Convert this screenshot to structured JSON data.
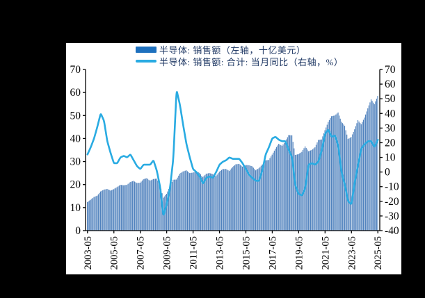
{
  "chart_data": {
    "type": "bar+line",
    "title": "",
    "legend": [
      {
        "label": "半导体: 销售额（左轴，十亿美元）",
        "type": "bar",
        "color": "#1d70be"
      },
      {
        "label": "半导体: 销售额: 合计: 当月同比（右轴，%）",
        "type": "line",
        "color": "#29abe2"
      }
    ],
    "left_axis": {
      "min": 0,
      "max": 70,
      "step": 10,
      "ticks": [
        0,
        10,
        20,
        30,
        40,
        50,
        60,
        70
      ]
    },
    "right_axis": {
      "min": -40,
      "max": 70,
      "step": 10,
      "ticks": [
        -40,
        -30,
        -20,
        -10,
        0,
        10,
        20,
        30,
        40,
        50,
        60,
        70
      ]
    },
    "x_tick_labels": [
      "2003-05",
      "2005-05",
      "2007-05",
      "2009-05",
      "2011-05",
      "2013-05",
      "2015-05",
      "2017-05",
      "2019-05",
      "2021-05",
      "2023-05",
      "2025-05"
    ],
    "x_label_rotation": -90,
    "grid": false,
    "highlight_x": "2023-05",
    "categories": [
      "2003-05",
      "2003-08",
      "2003-11",
      "2004-02",
      "2004-05",
      "2004-08",
      "2004-11",
      "2005-02",
      "2005-05",
      "2005-08",
      "2005-11",
      "2006-02",
      "2006-05",
      "2006-08",
      "2006-11",
      "2007-02",
      "2007-05",
      "2007-08",
      "2007-11",
      "2008-02",
      "2008-05",
      "2008-08",
      "2008-11",
      "2009-02",
      "2009-05",
      "2009-08",
      "2009-11",
      "2010-02",
      "2010-05",
      "2010-08",
      "2010-11",
      "2011-02",
      "2011-05",
      "2011-08",
      "2011-11",
      "2012-02",
      "2012-05",
      "2012-08",
      "2012-11",
      "2013-02",
      "2013-05",
      "2013-08",
      "2013-11",
      "2014-02",
      "2014-05",
      "2014-08",
      "2014-11",
      "2015-02",
      "2015-05",
      "2015-08",
      "2015-11",
      "2016-02",
      "2016-05",
      "2016-08",
      "2016-11",
      "2017-02",
      "2017-05",
      "2017-08",
      "2017-11",
      "2018-02",
      "2018-05",
      "2018-08",
      "2018-11",
      "2019-02",
      "2019-05",
      "2019-08",
      "2019-11",
      "2020-02",
      "2020-05",
      "2020-08",
      "2020-11",
      "2021-02",
      "2021-05",
      "2021-08",
      "2021-11",
      "2022-02",
      "2022-05",
      "2022-08",
      "2022-11",
      "2023-02",
      "2023-05",
      "2023-08",
      "2023-11",
      "2024-02",
      "2024-05",
      "2024-08",
      "2024-11",
      "2025-02",
      "2025-05"
    ],
    "series": [
      {
        "name": "半导体: 销售额（左轴，十亿美元）",
        "type": "bar",
        "axis": "left",
        "color": "#4f81bd",
        "values": [
          12.4,
          13.4,
          14.6,
          15.2,
          17.0,
          17.8,
          18.1,
          17.4,
          18.0,
          18.9,
          19.9,
          19.7,
          19.9,
          21.1,
          21.6,
          20.7,
          20.8,
          22.3,
          22.8,
          21.7,
          22.4,
          22.6,
          20.1,
          14.3,
          16.0,
          19.1,
          22.1,
          22.2,
          24.7,
          25.7,
          26.2,
          25.0,
          25.2,
          25.7,
          25.1,
          23.2,
          24.7,
          25.0,
          24.6,
          23.7,
          25.6,
          26.7,
          26.8,
          25.9,
          27.6,
          28.8,
          29.0,
          27.8,
          28.5,
          28.4,
          27.9,
          26.2,
          27.1,
          28.7,
          30.5,
          30.7,
          33.0,
          35.6,
          37.7,
          36.8,
          38.7,
          41.5,
          41.4,
          32.9,
          33.2,
          34.2,
          36.6,
          34.5,
          35.0,
          36.2,
          39.4,
          39.6,
          43.6,
          47.2,
          49.7,
          50.0,
          51.3,
          47.3,
          45.5,
          39.8,
          40.7,
          44.0,
          48.0,
          46.2,
          49.1,
          53.1,
          57.0,
          54.9,
          58.5
        ]
      },
      {
        "name": "半导体: 销售额: 合计: 当月同比（右轴，%）",
        "type": "line",
        "axis": "right",
        "color": "#29abe2",
        "values": [
          12,
          17,
          23,
          31,
          40,
          35,
          21,
          13,
          6,
          6,
          10,
          11,
          10,
          12,
          8,
          4,
          2,
          5,
          5,
          5,
          8,
          1,
          -10,
          -30,
          -22,
          -11,
          9,
          56,
          46,
          32,
          19,
          10,
          2,
          0,
          -3,
          -8,
          -4,
          -3,
          -4,
          0,
          5,
          7,
          8,
          10,
          9,
          9,
          9,
          6,
          2,
          -2,
          -4,
          -6,
          -6,
          1,
          12,
          17,
          23,
          24,
          22,
          21,
          21,
          15,
          10,
          -9,
          -15,
          -16,
          -11,
          5,
          6,
          5,
          7,
          15,
          26,
          29,
          24,
          25,
          18,
          0,
          -9,
          -20,
          -22,
          -7,
          5,
          16,
          19,
          21,
          21,
          17,
          22
        ]
      }
    ]
  },
  "colors": {
    "page_background": "#000000",
    "panel_background": "#ffffff",
    "axis": "#000000",
    "axis_text": "#000000",
    "legend_text": "#1f3864",
    "bar_fill": "#4f81bd",
    "line_stroke": "#29abe2",
    "highlight_line": "rgba(255,255,255,0.55)"
  }
}
